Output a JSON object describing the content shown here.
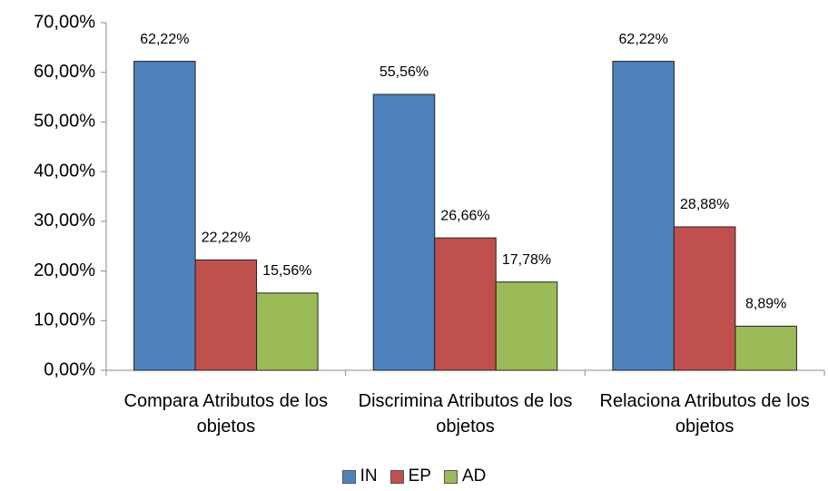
{
  "chart_data": {
    "type": "bar",
    "categories": [
      "Compara Atributos de los objetos",
      "Discrimina Atributos de los objetos",
      "Relaciona Atributos de los objetos"
    ],
    "series": [
      {
        "name": "IN",
        "color": "#4f81bd",
        "values": [
          62.22,
          55.56,
          62.22
        ],
        "value_labels": [
          "62,22%",
          "55,56%",
          "62,22%"
        ]
      },
      {
        "name": "EP",
        "color": "#c0504d",
        "values": [
          22.22,
          26.66,
          28.88
        ],
        "value_labels": [
          "22,22%",
          "26,66%",
          "28,88%"
        ]
      },
      {
        "name": "AD",
        "color": "#9bbb59",
        "values": [
          15.56,
          17.78,
          8.89
        ],
        "value_labels": [
          "15,56%",
          "17,78%",
          "8,89%"
        ]
      }
    ],
    "ylim": [
      0,
      70
    ],
    "yticks": [
      {
        "value": 0,
        "label": "0,00%"
      },
      {
        "value": 10,
        "label": "10,00%"
      },
      {
        "value": 20,
        "label": "20,00%"
      },
      {
        "value": 30,
        "label": "30,00%"
      },
      {
        "value": 40,
        "label": "40,00%"
      },
      {
        "value": 50,
        "label": "50,00%"
      },
      {
        "value": 60,
        "label": "60,00%"
      },
      {
        "value": 70,
        "label": "70,00%"
      }
    ],
    "grid": false,
    "legend": "bottom"
  }
}
